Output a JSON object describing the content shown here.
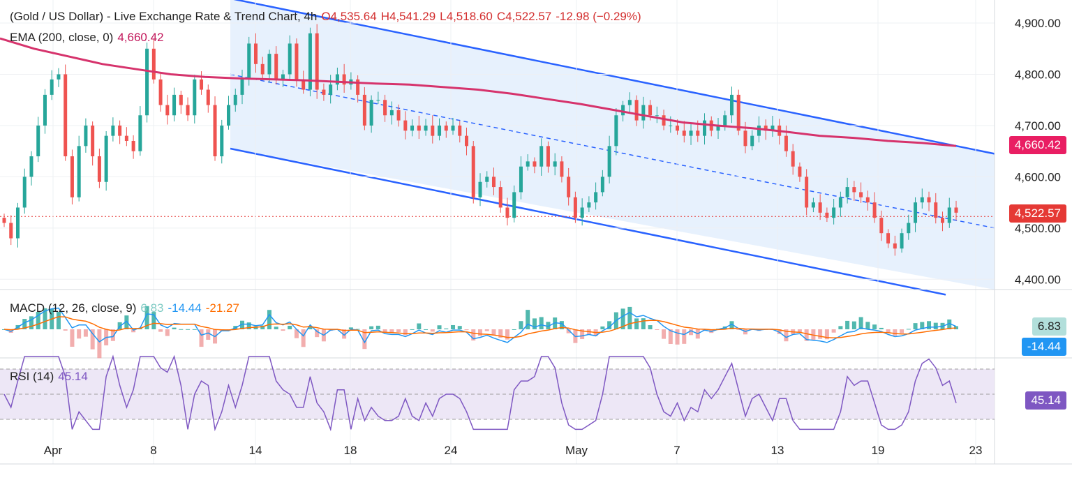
{
  "header": {
    "title": "(Gold / US Dollar) - Live Exchange Rate & Trend Chart, 4h",
    "open": "O4,535.64",
    "high": "H4,541.29",
    "low": "L4,518.60",
    "close": "C4,522.57",
    "change": "-12.98 (−0.29%)"
  },
  "ema": {
    "label": "EMA (200, close, 0)",
    "value": "4,660.42"
  },
  "macd": {
    "label": "MACD (12, 26, close, 9)",
    "hist": "6.83",
    "macd": "-14.44",
    "signal": "-21.27"
  },
  "rsi": {
    "label": "RSI (14)",
    "value": "45.14"
  },
  "price_tags": {
    "ema": "4,660.42",
    "last": "4,522.57",
    "macd_hist": "6.83",
    "macd_line": "-14.44",
    "rsi": "45.14"
  },
  "colors": {
    "up": "#26a69a",
    "down": "#ef5350",
    "ema": "#d6336c",
    "channel": "#2962ff",
    "channel_fill": "#e3effd",
    "macd_line": "#2196f3",
    "signal_line": "#ff6d00",
    "rsi_line": "#7e57c2",
    "rsi_band": "#ede7f6",
    "last_price": "#e53935"
  },
  "chart_data": {
    "type": "candlestick",
    "instrument": "XAU/USD",
    "timeframe": "4h",
    "y_ticks": [
      "4,900.00",
      "4,800.00",
      "4,700.00",
      "4,600.00",
      "4,500.00",
      "4,400.00"
    ],
    "ylim": [
      4380,
      4945
    ],
    "x_ticks": [
      "Apr",
      "8",
      "14",
      "18",
      "24",
      "May",
      "7",
      "13",
      "19",
      "23"
    ],
    "last_price": 4522.57,
    "ema200_last": 4660.42,
    "channel": {
      "upper_start": 4948,
      "upper_end": 4645,
      "lower_start": 4655,
      "lower_end": 4370,
      "mid_start": 4800,
      "mid_end": 4500
    },
    "price_path": [
      4510,
      4480,
      4540,
      4600,
      4640,
      4700,
      4760,
      4790,
      4800,
      4640,
      4560,
      4660,
      4700,
      4640,
      4590,
      4680,
      4700,
      4680,
      4670,
      4650,
      4720,
      4850,
      4790,
      4740,
      4720,
      4760,
      4740,
      4720,
      4790,
      4770,
      4740,
      4640,
      4700,
      4740,
      4760,
      4790,
      4860,
      4820,
      4800,
      4840,
      4790,
      4800,
      4860,
      4790,
      4770,
      4880,
      4770,
      4760,
      4780,
      4800,
      4780,
      4790,
      4760,
      4700,
      4750,
      4750,
      4720,
      4730,
      4710,
      4690,
      4700,
      4690,
      4700,
      4680,
      4700,
      4690,
      4700,
      4680,
      4660,
      4560,
      4590,
      4600,
      4580,
      4540,
      4520,
      4570,
      4620,
      4630,
      4620,
      4660,
      4620,
      4630,
      4600,
      4560,
      4520,
      4540,
      4550,
      4570,
      4600,
      4660,
      4720,
      4740,
      4750,
      4710,
      4740,
      4720,
      4720,
      4700,
      4700,
      4690,
      4680,
      4690,
      4680,
      4710,
      4690,
      4700,
      4720,
      4760,
      4690,
      4660,
      4680,
      4700,
      4690,
      4700,
      4680,
      4650,
      4620,
      4600,
      4540,
      4550,
      4530,
      4520,
      4540,
      4560,
      4580,
      4570,
      4560,
      4550,
      4520,
      4490,
      4470,
      4460,
      4490,
      4510,
      4550,
      4560,
      4550,
      4520,
      4510,
      4540,
      4530
    ],
    "ema_path": [
      4870,
      4850,
      4835,
      4820,
      4810,
      4800,
      4795,
      4792,
      4790,
      4788,
      4785,
      4782,
      4780,
      4775,
      4770,
      4762,
      4752,
      4742,
      4730,
      4718,
      4706,
      4700,
      4695,
      4688,
      4680,
      4676,
      4670,
      4666,
      4660
    ],
    "macd": {
      "hist_last": 6.83,
      "macd_last": -14.44,
      "signal_last": -21.27
    },
    "rsi": {
      "last": 45.14,
      "levels": [
        70,
        50,
        30
      ]
    }
  }
}
